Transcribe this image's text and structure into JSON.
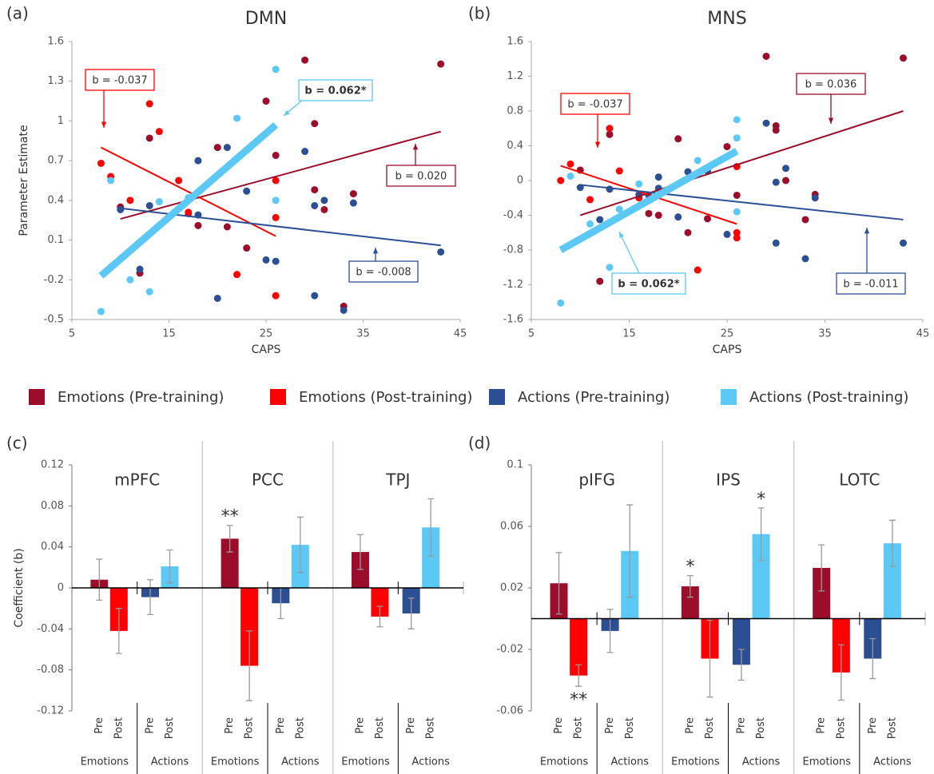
{
  "chart_data": [
    {
      "type": "scatter",
      "panel_label": "(a)",
      "title": "DMN",
      "xlabel": "CAPS",
      "ylabel": "Parameter Estimate",
      "xlim": [
        5,
        45
      ],
      "xticks": [
        5,
        15,
        25,
        35,
        45
      ],
      "ylim": [
        -0.5,
        1.6
      ],
      "yticks": [
        -0.5,
        -0.2,
        0.1,
        0.4,
        0.7,
        1,
        1.3,
        1.6
      ],
      "series": [
        {
          "name": "Emotions (Pre-training)",
          "color": "#9b0d2b",
          "x": [
            10,
            12,
            13,
            17,
            18,
            20,
            21,
            23,
            25,
            26,
            29,
            30,
            30,
            31,
            33,
            34,
            43
          ],
          "values": [
            0.35,
            -0.15,
            0.87,
            0.3,
            0.21,
            0.8,
            0.2,
            0.04,
            1.15,
            0.74,
            1.46,
            0.98,
            0.48,
            0.33,
            -0.4,
            0.45,
            1.43
          ],
          "fit": {
            "x": [
              10,
              43
            ],
            "y": [
              0.26,
              0.92
            ]
          },
          "annotation": "b = 0.020"
        },
        {
          "name": "Emotions (Post-training)",
          "color": "#ff0000",
          "x": [
            8,
            9,
            11,
            13,
            14,
            16,
            17,
            22,
            26,
            26,
            26
          ],
          "values": [
            0.68,
            0.58,
            0.4,
            1.13,
            0.92,
            0.55,
            0.31,
            -0.16,
            0.55,
            0.27,
            -0.32
          ],
          "fit": {
            "x": [
              8,
              26
            ],
            "y": [
              0.8,
              0.13
            ]
          },
          "annotation": "b = -0.037"
        },
        {
          "name": "Actions (Pre-training)",
          "color": "#2c4f94",
          "x": [
            10,
            12,
            13,
            18,
            18,
            20,
            21,
            23,
            25,
            26,
            29,
            30,
            30,
            31,
            33,
            34,
            43
          ],
          "values": [
            0.33,
            -0.12,
            0.36,
            0.7,
            0.29,
            -0.34,
            0.8,
            0.47,
            -0.05,
            -0.06,
            0.77,
            0.36,
            -0.32,
            0.4,
            -0.43,
            0.38,
            0.01
          ],
          "fit": {
            "x": [
              10,
              43
            ],
            "y": [
              0.34,
              0.06
            ]
          },
          "annotation": "b = -0.008"
        },
        {
          "name": "Actions (Post-training)",
          "color": "#5bc8f5",
          "x": [
            8,
            9,
            11,
            13,
            14,
            17,
            22,
            26,
            26
          ],
          "values": [
            -0.44,
            0.55,
            -0.2,
            -0.29,
            0.39,
            0.42,
            1.02,
            1.39,
            0.4
          ],
          "fit": {
            "x": [
              8,
              26
            ],
            "y": [
              -0.17,
              0.97
            ]
          },
          "annotation": "b = 0.062*",
          "bold": true
        }
      ]
    },
    {
      "type": "scatter",
      "panel_label": "(b)",
      "title": "MNS",
      "xlabel": "CAPS",
      "xlim": [
        5,
        45
      ],
      "xticks": [
        5,
        15,
        25,
        35,
        45
      ],
      "ylim": [
        -1.6,
        1.6
      ],
      "yticks": [
        -1.6,
        -1.2,
        -0.8,
        -0.4,
        0,
        0.4,
        0.8,
        1.2,
        1.6
      ],
      "series": [
        {
          "color": "#9b0d2b",
          "x": [
            10,
            12,
            13,
            17,
            18,
            20,
            21,
            23,
            25,
            26,
            29,
            30,
            30,
            31,
            33,
            34,
            43
          ],
          "values": [
            0.12,
            -1.16,
            0.53,
            -0.38,
            -0.4,
            0.48,
            -0.6,
            -0.44,
            0.39,
            -0.17,
            1.43,
            0.63,
            0.58,
            0,
            -0.45,
            -0.16,
            1.41
          ],
          "fit": {
            "x": [
              10,
              43
            ],
            "y": [
              -0.4,
              0.8
            ]
          },
          "annotation": "b = 0.036"
        },
        {
          "color": "#ff0000",
          "x": [
            8,
            9,
            11,
            13,
            14,
            16,
            22,
            26,
            26,
            26
          ],
          "values": [
            0,
            0.19,
            -0.22,
            0.6,
            0.11,
            -0.2,
            -1.03,
            -0.6,
            -0.66,
            0.16
          ],
          "fit": {
            "x": [
              8,
              26
            ],
            "y": [
              0.17,
              -0.5
            ]
          },
          "annotation": "b = -0.037"
        },
        {
          "color": "#2c4f94",
          "x": [
            10,
            12,
            13,
            16,
            17,
            18,
            18,
            20,
            21,
            23,
            25,
            29,
            30,
            30,
            31,
            33,
            34,
            43
          ],
          "values": [
            -0.08,
            -0.45,
            -0.1,
            -0.16,
            -0.17,
            0.04,
            -0.09,
            -0.42,
            0.1,
            0.11,
            -0.62,
            0.66,
            -0.02,
            -0.72,
            0.14,
            -0.9,
            -0.2,
            -0.72
          ],
          "fit": {
            "x": [
              10,
              43
            ],
            "y": [
              -0.05,
              -0.45
            ]
          },
          "annotation": "b = -0.011"
        },
        {
          "color": "#5bc8f5",
          "x": [
            8,
            9,
            11,
            13,
            14,
            16,
            22,
            26,
            26,
            26
          ],
          "values": [
            -1.41,
            0.05,
            -0.5,
            -1.0,
            -0.33,
            -0.04,
            0.23,
            0.7,
            0.49,
            -0.36
          ],
          "fit": {
            "x": [
              8,
              26
            ],
            "y": [
              -0.8,
              0.34
            ]
          },
          "annotation": "b = 0.062*",
          "bold": true
        }
      ]
    },
    {
      "type": "bar",
      "panel_label": "(c)",
      "ylabel": "Coefficient (b)",
      "categories": [
        "mPFC",
        "PCC",
        "TPJ"
      ],
      "bar_labels": [
        "Pre",
        "Post"
      ],
      "group_labels": [
        "Emotions",
        "Actions"
      ],
      "ylim": [
        -0.12,
        0.12
      ],
      "yticks": [
        -0.12,
        -0.08,
        -0.04,
        0,
        0.04,
        0.08,
        0.12
      ],
      "series": [
        {
          "color": "#9b0d2b",
          "values": [
            0.008,
            0.048,
            0.035
          ],
          "errors": [
            0.02,
            0.013,
            0.017
          ],
          "significance": [
            null,
            "**",
            null
          ]
        },
        {
          "color": "#ff0000",
          "values": [
            -0.042,
            -0.076,
            -0.028
          ],
          "errors": [
            0.022,
            0.034,
            0.01
          ]
        },
        {
          "color": "#2c4f94",
          "values": [
            -0.009,
            -0.015,
            -0.025
          ],
          "errors": [
            0.017,
            0.015,
            0.015
          ]
        },
        {
          "color": "#5bc8f5",
          "values": [
            0.021,
            0.042,
            0.059
          ],
          "errors": [
            0.016,
            0.027,
            0.028
          ]
        }
      ]
    },
    {
      "type": "bar",
      "panel_label": "(d)",
      "categories": [
        "pIFG",
        "IPS",
        "LOTC"
      ],
      "bar_labels": [
        "Pre",
        "Post"
      ],
      "group_labels": [
        "Emotions",
        "Actions"
      ],
      "ylim": [
        -0.06,
        0.1
      ],
      "yticks": [
        -0.06,
        -0.02,
        0.02,
        0.06,
        0.1
      ],
      "series": [
        {
          "color": "#9b0d2b",
          "values": [
            0.023,
            0.021,
            0.033
          ],
          "errors": [
            0.02,
            0.007,
            0.015
          ],
          "significance": [
            null,
            "*",
            null
          ]
        },
        {
          "color": "#ff0000",
          "values": [
            -0.037,
            -0.026,
            -0.035
          ],
          "errors": [
            0.007,
            0.025,
            0.018
          ],
          "significance": [
            "**",
            null,
            null
          ]
        },
        {
          "color": "#2c4f94",
          "values": [
            -0.008,
            -0.03,
            -0.026
          ],
          "errors": [
            0.014,
            0.01,
            0.013
          ]
        },
        {
          "color": "#5bc8f5",
          "values": [
            0.044,
            0.055,
            0.049
          ],
          "errors": [
            0.03,
            0.017,
            0.015
          ],
          "significance": [
            null,
            "*",
            null
          ]
        }
      ]
    }
  ]
}
